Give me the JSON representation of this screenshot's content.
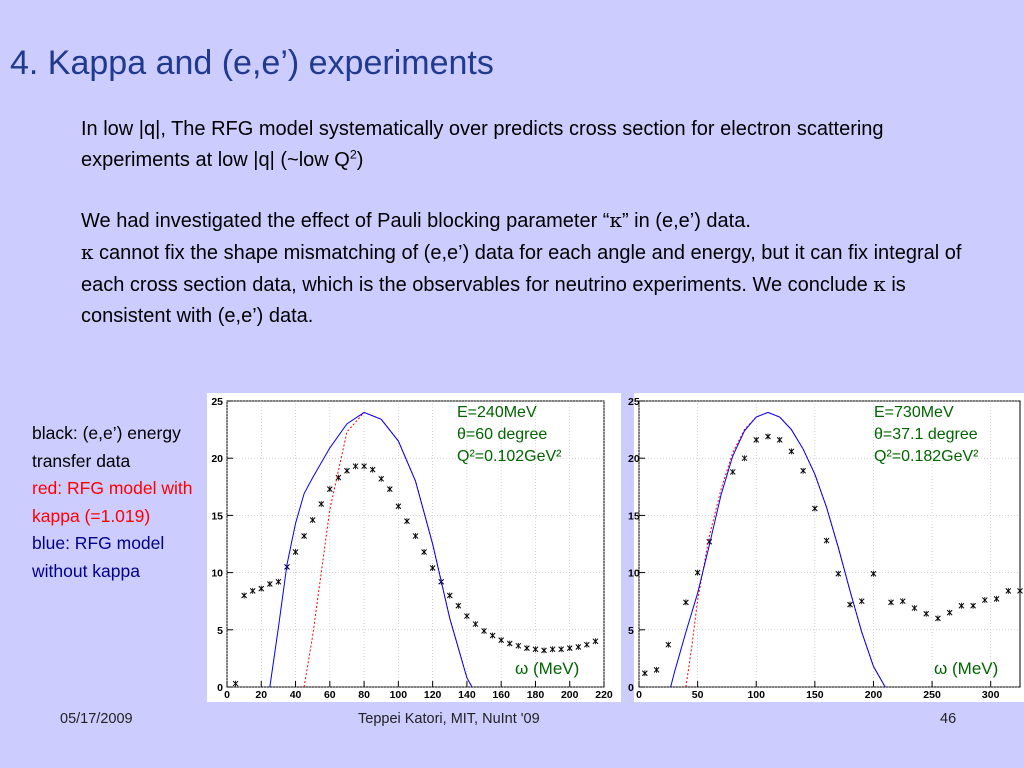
{
  "slide": {
    "title": "4. Kappa and (e,e’) experiments",
    "para1_a": "In low |q|, The RFG model systematically over predicts cross section for electron scattering experiments at low |q|  (~low Q",
    "para1_sup": "2",
    "para1_b": ")",
    "para2_a": "We had investigated the effect of Pauli blocking parameter “",
    "kappa": "κ",
    "para2_b": "” in (e,e’) data.",
    "para2_c": " cannot fix the shape mismatching of (e,e’) data for each angle and energy, but it can fix integral of each cross section data, which is the observables for neutrino experiments. We conclude ",
    "para2_d": " is consistent with (e,e’) data."
  },
  "legend": {
    "black": "black: (e,e’) energy transfer data",
    "red": "red: RFG model with kappa (=1.019)",
    "blue": "blue: RFG model without kappa",
    "colors": {
      "black": "#000000",
      "red": "#ff0000",
      "blue": "#00008b"
    }
  },
  "footer": {
    "date": "05/17/2009",
    "author": "Teppei Katori, MIT, NuInt '09",
    "page": "46"
  },
  "chart_data": [
    {
      "type": "scatter",
      "annotation_lines": [
        "E=240MeV",
        "θ=60 degree",
        "Q²=0.102GeV²"
      ],
      "xlabel": "ω (MeV)",
      "ylabel": "",
      "xlim": [
        0,
        220
      ],
      "ylim": [
        0,
        25
      ],
      "xticks": [
        0,
        20,
        40,
        60,
        80,
        100,
        120,
        140,
        160,
        180,
        200,
        220
      ],
      "yticks": [
        0,
        5,
        10,
        15,
        20,
        25
      ],
      "grid": true,
      "series": [
        {
          "name": "",
          "role": "data",
          "color": "#000000",
          "x": [
            5,
            10,
            15,
            20,
            25,
            30,
            35,
            40,
            45,
            50,
            55,
            60,
            65,
            70,
            75,
            80,
            85,
            90,
            95,
            100,
            105,
            110,
            115,
            120,
            125,
            130,
            135,
            140,
            145,
            150,
            155,
            160,
            165,
            170,
            175,
            180,
            185,
            190,
            195,
            200,
            205,
            210,
            215
          ],
          "y": [
            0.3,
            8.0,
            8.4,
            8.6,
            9.0,
            9.2,
            10.5,
            11.8,
            13.2,
            14.6,
            16.0,
            17.3,
            18.3,
            18.9,
            19.3,
            19.3,
            19.0,
            18.2,
            17.3,
            15.8,
            14.5,
            13.2,
            11.8,
            10.4,
            9.2,
            8.0,
            7.1,
            6.2,
            5.5,
            4.9,
            4.5,
            4.1,
            3.8,
            3.6,
            3.4,
            3.3,
            3.2,
            3.3,
            3.3,
            3.4,
            3.5,
            3.7,
            4.0
          ]
        },
        {
          "name": "",
          "role": "model_with_kappa",
          "color": "#ff0000",
          "x": [
            45,
            50,
            60,
            70,
            80,
            90,
            100,
            110,
            120,
            130,
            140,
            143
          ],
          "y": [
            0,
            4.5,
            15.5,
            22.3,
            24.0,
            23.4,
            21.5,
            18.0,
            12.5,
            6.0,
            0.8,
            0
          ]
        },
        {
          "name": "",
          "role": "model_without_kappa",
          "color": "#0000ff",
          "x": [
            25,
            30,
            35,
            40,
            45,
            50,
            60,
            70,
            80,
            90,
            100,
            110,
            120,
            130,
            140,
            143
          ],
          "y": [
            0,
            5.2,
            10.7,
            14.3,
            16.9,
            18.3,
            20.9,
            23.0,
            24.0,
            23.4,
            21.5,
            18.0,
            12.5,
            6.0,
            0.8,
            0
          ]
        }
      ]
    },
    {
      "type": "scatter",
      "annotation_lines": [
        "E=730MeV",
        "θ=37.1 degree",
        "Q²=0.182GeV²"
      ],
      "xlabel": "ω (MeV)",
      "ylabel": "",
      "xlim": [
        0,
        325
      ],
      "ylim": [
        0,
        25
      ],
      "xticks": [
        0,
        50,
        100,
        150,
        200,
        250,
        300
      ],
      "yticks": [
        0,
        5,
        10,
        15,
        20,
        25
      ],
      "grid": true,
      "series": [
        {
          "name": "",
          "role": "data",
          "color": "#000000",
          "x": [
            5,
            15,
            25,
            40,
            50,
            60,
            80,
            90,
            100,
            110,
            120,
            130,
            140,
            150,
            160,
            170,
            180,
            190,
            200,
            215,
            225,
            235,
            245,
            255,
            265,
            275,
            285,
            295,
            305,
            315,
            325
          ],
          "y": [
            1.2,
            1.5,
            3.7,
            7.4,
            10.0,
            12.7,
            18.8,
            20.0,
            21.6,
            21.9,
            21.6,
            20.6,
            18.9,
            15.6,
            12.8,
            9.9,
            7.2,
            7.5,
            9.9,
            7.4,
            7.5,
            6.9,
            6.4,
            6.0,
            6.5,
            7.1,
            7.1,
            7.6,
            7.7,
            8.4,
            8.4
          ]
        },
        {
          "name": "",
          "role": "model_with_kappa",
          "color": "#ff0000",
          "x": [
            40,
            45,
            50,
            60,
            70,
            80,
            90,
            100,
            110,
            120,
            130,
            140,
            150,
            160,
            170,
            180,
            190,
            200,
            210
          ],
          "y": [
            0,
            3.5,
            7.6,
            13.2,
            17.3,
            20.5,
            22.5,
            23.6,
            24.0,
            23.6,
            22.5,
            20.8,
            18.6,
            15.7,
            12.2,
            8.4,
            4.8,
            1.8,
            0
          ]
        },
        {
          "name": "",
          "role": "model_without_kappa",
          "color": "#0000ff",
          "x": [
            27,
            30,
            35,
            40,
            45,
            50,
            60,
            70,
            80,
            90,
            100,
            110,
            120,
            130,
            140,
            150,
            160,
            170,
            180,
            190,
            200,
            210
          ],
          "y": [
            0,
            1.2,
            3.0,
            4.8,
            6.5,
            8.2,
            12.4,
            16.8,
            20.2,
            22.4,
            23.6,
            24.0,
            23.6,
            22.5,
            20.8,
            18.6,
            15.7,
            12.2,
            8.4,
            4.8,
            1.8,
            0
          ]
        }
      ]
    }
  ]
}
